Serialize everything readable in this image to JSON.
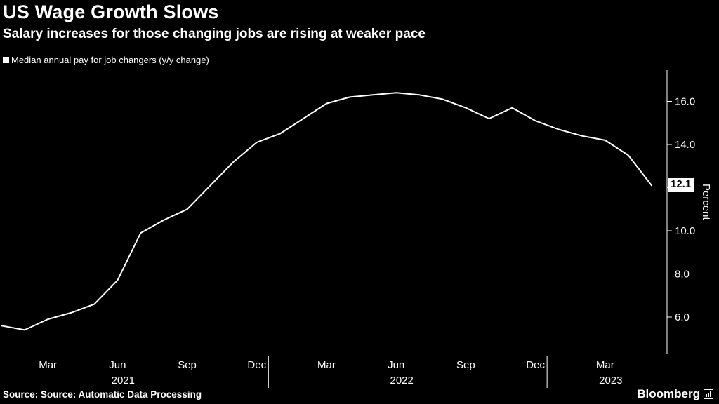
{
  "header": {
    "title": "US Wage Growth Slows",
    "subtitle": "Salary increases for those changing jobs are rising at weaker pace"
  },
  "legend": {
    "label": "Median annual pay for job changers (y/y change)"
  },
  "footer": {
    "source": "Source: Source: Automatic Data Processing",
    "brand": "Bloomberg"
  },
  "chart_data": {
    "type": "line",
    "title": "US Wage Growth Slows",
    "subtitle": "Salary increases for those changing jobs are rising at weaker pace",
    "ylabel": "Percent",
    "background": "#000000",
    "line_color": "#ffffff",
    "ylim": [
      4.5,
      17.5
    ],
    "grid": false,
    "legend_position": "top-left",
    "series": [
      {
        "name": "Median annual pay for job changers (y/y change)",
        "x": [
          "2021-01",
          "2021-02",
          "2021-03",
          "2021-04",
          "2021-05",
          "2021-06",
          "2021-07",
          "2021-08",
          "2021-09",
          "2021-10",
          "2021-11",
          "2021-12",
          "2022-01",
          "2022-02",
          "2022-03",
          "2022-04",
          "2022-05",
          "2022-06",
          "2022-07",
          "2022-08",
          "2022-09",
          "2022-10",
          "2022-11",
          "2022-12",
          "2023-01",
          "2023-02",
          "2023-03",
          "2023-04",
          "2023-05"
        ],
        "values": [
          5.6,
          5.4,
          5.9,
          6.2,
          6.6,
          7.7,
          9.9,
          10.5,
          11.0,
          12.1,
          13.2,
          14.1,
          14.5,
          15.2,
          15.9,
          16.2,
          16.3,
          16.4,
          16.3,
          16.1,
          15.7,
          15.2,
          15.7,
          15.1,
          14.7,
          14.4,
          14.2,
          13.5,
          12.1
        ]
      }
    ],
    "y_ticks": [
      {
        "value": 16,
        "label": "16.0"
      },
      {
        "value": 14,
        "label": "14.0"
      },
      {
        "value": 12,
        "label": ""
      },
      {
        "value": 10,
        "label": "10.0"
      },
      {
        "value": 8,
        "label": "8.0"
      },
      {
        "value": 6,
        "label": "6.0"
      }
    ],
    "x_ticks": [
      {
        "i": 2,
        "label": "Mar"
      },
      {
        "i": 5,
        "label": "Jun",
        "year": "2021"
      },
      {
        "i": 8,
        "label": "Sep"
      },
      {
        "i": 11,
        "label": "Dec"
      },
      {
        "i": 14,
        "label": "Mar"
      },
      {
        "i": 17,
        "label": "Jun",
        "year": "2022"
      },
      {
        "i": 20,
        "label": "Sep"
      },
      {
        "i": 23,
        "label": "Dec"
      },
      {
        "i": 26,
        "label": "Mar",
        "year": "2023"
      }
    ],
    "year_dividers": [
      11.5,
      23.5
    ],
    "end_label": "12.1",
    "end_value": 12.1
  }
}
